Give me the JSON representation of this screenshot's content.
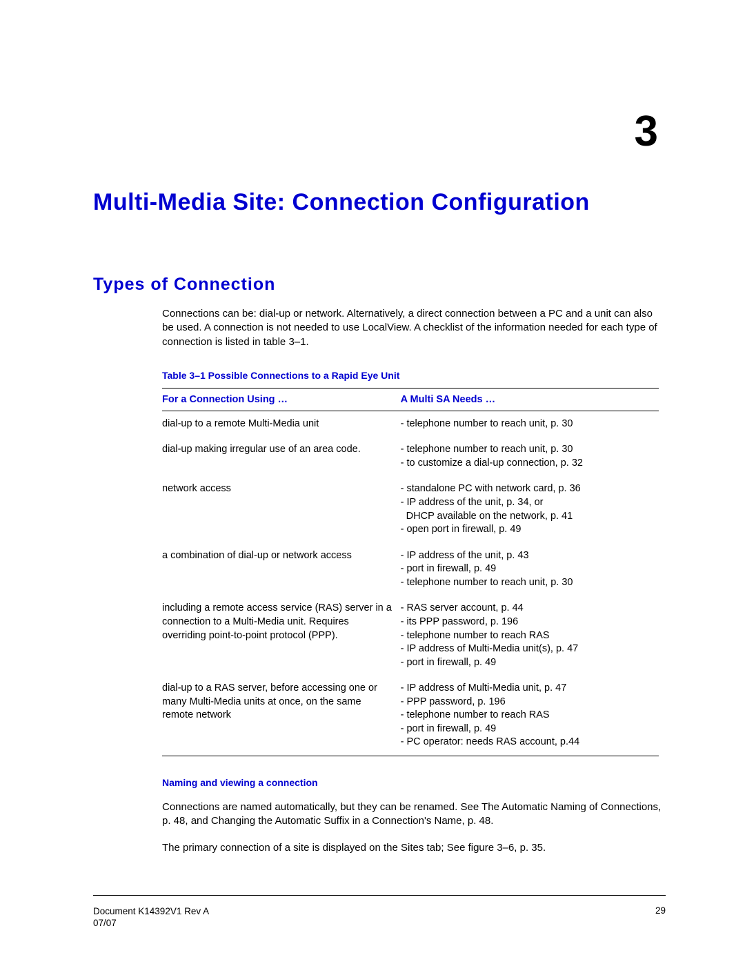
{
  "chapter": {
    "number": "3",
    "title": "Multi-Media Site: Connection Configuration"
  },
  "section": {
    "title": "Types of Connection",
    "intro": "Connections can be: dial-up or network. Alternatively, a direct connection between a PC and a unit can also be used. A connection is not needed to use LocalView. A checklist of the information needed for each type of connection is listed in table 3–1."
  },
  "table": {
    "caption": "Table 3–1    Possible Connections to a Rapid Eye Unit",
    "headers": {
      "left": "For a Connection Using …",
      "right": "A Multi SA Needs …"
    },
    "rows": [
      {
        "left": "dial-up to a remote Multi-Media unit",
        "right": "- telephone number to reach unit, p. 30"
      },
      {
        "left": "dial-up making irregular use of an area code.",
        "right": "- telephone number to reach unit, p. 30\n- to customize a dial-up connection, p. 32"
      },
      {
        "left": "network access",
        "right": "- standalone PC with network card, p. 36\n- IP address of the unit, p. 34, or\n  DHCP available on the network, p. 41\n- open port in firewall, p. 49"
      },
      {
        "left": "a combination of dial-up or network access",
        "right": "- IP address of the unit, p. 43\n- port in firewall, p. 49\n- telephone number to reach unit, p. 30"
      },
      {
        "left": "including a remote access service (RAS) server in a connection to a Multi-Media unit. Requires overriding point-to-point protocol (PPP).",
        "right": "- RAS server account, p. 44\n- its PPP password, p. 196\n- telephone number to reach RAS\n- IP address of Multi-Media unit(s), p. 47\n- port in firewall, p. 49"
      },
      {
        "left": "dial-up to a RAS server, before accessing one or many Multi-Media units at once, on the same remote network",
        "right": "- IP address of Multi-Media unit, p. 47\n- PPP password, p. 196\n- telephone number to reach RAS\n- port in firewall, p. 49\n- PC operator: needs RAS account, p.44"
      }
    ]
  },
  "subsection": {
    "heading": "Naming and viewing a connection",
    "para1": "Connections are named automatically, but they can be renamed. See The Automatic Naming of Connections, p. 48, and Changing the Automatic Suffix in a Connection's Name, p. 48.",
    "para2": "The primary connection of a site is displayed on the Sites tab; See figure 3–6, p. 35."
  },
  "footer": {
    "doc_line1": "Document K14392V1 Rev A",
    "doc_line2": "07/07",
    "page_number": "29"
  },
  "colors": {
    "heading_blue": "#0000d0",
    "text_black": "#000000",
    "background": "#ffffff"
  }
}
